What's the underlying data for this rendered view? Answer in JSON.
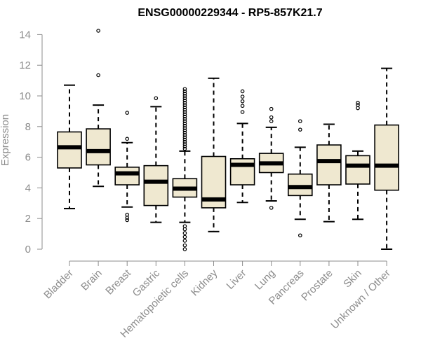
{
  "chart_data": {
    "type": "boxplot",
    "title": "ENSG00000229344 - RP5-857K21.7",
    "xlabel": "",
    "ylabel": "Expression",
    "ylim": [
      0,
      14.5
    ],
    "yticks": [
      0,
      2,
      4,
      6,
      8,
      10,
      12,
      14
    ],
    "box_color": "#efe8d0",
    "categories": [
      "Bladder",
      "Brain",
      "Breast",
      "Gastric",
      "Hematopoietic cells",
      "Kidney",
      "Liver",
      "Lung",
      "Pancreas",
      "Prostate",
      "Skin",
      "Unknown / Other"
    ],
    "boxes": [
      {
        "label": "Bladder",
        "whislo": 2.65,
        "q1": 5.3,
        "med": 6.65,
        "q3": 7.65,
        "whishi": 10.7,
        "fliers": []
      },
      {
        "label": "Brain",
        "whislo": 4.1,
        "q1": 5.5,
        "med": 6.4,
        "q3": 7.85,
        "whishi": 9.4,
        "fliers": [
          11.35,
          14.25
        ]
      },
      {
        "label": "Breast",
        "whislo": 2.75,
        "q1": 4.2,
        "med": 4.95,
        "q3": 5.35,
        "whishi": 6.95,
        "fliers": [
          1.9,
          2.05,
          2.25,
          7.2,
          8.9
        ]
      },
      {
        "label": "Gastric",
        "whislo": 1.75,
        "q1": 2.85,
        "med": 4.4,
        "q3": 5.45,
        "whishi": 9.3,
        "fliers": [
          9.85
        ]
      },
      {
        "label": "Hematopoietic cells",
        "whislo": 1.75,
        "q1": 3.4,
        "med": 3.95,
        "q3": 4.6,
        "whishi": 6.4,
        "fliers": [
          0.0,
          0.25,
          0.55,
          0.8,
          1.05,
          1.3,
          1.5,
          6.55,
          6.7,
          6.85,
          7.0,
          7.15,
          7.3,
          7.45,
          7.6,
          7.75,
          7.9,
          8.05,
          8.2,
          8.35,
          8.5,
          8.65,
          8.8,
          8.95,
          9.1,
          9.25,
          9.4,
          9.55,
          9.7,
          9.85,
          10.0,
          10.15,
          10.3,
          10.45
        ]
      },
      {
        "label": "Kidney",
        "whislo": 1.15,
        "q1": 2.7,
        "med": 3.25,
        "q3": 6.05,
        "whishi": 11.15,
        "fliers": []
      },
      {
        "label": "Liver",
        "whislo": 3.05,
        "q1": 4.2,
        "med": 5.5,
        "q3": 5.9,
        "whishi": 8.2,
        "fliers": [
          8.95,
          9.35,
          9.65,
          9.95,
          10.3
        ]
      },
      {
        "label": "Lung",
        "whislo": 3.15,
        "q1": 5.0,
        "med": 5.6,
        "q3": 6.25,
        "whishi": 7.95,
        "fliers": [
          2.7,
          8.35,
          8.6,
          9.15
        ]
      },
      {
        "label": "Pancreas",
        "whislo": 1.95,
        "q1": 3.5,
        "med": 4.05,
        "q3": 4.9,
        "whishi": 6.65,
        "fliers": [
          0.9,
          7.8,
          8.35
        ]
      },
      {
        "label": "Prostate",
        "whislo": 1.8,
        "q1": 4.2,
        "med": 5.75,
        "q3": 6.8,
        "whishi": 8.15,
        "fliers": []
      },
      {
        "label": "Skin",
        "whislo": 1.95,
        "q1": 4.25,
        "med": 5.45,
        "q3": 6.1,
        "whishi": 6.4,
        "fliers": [
          9.2,
          9.4,
          9.55
        ]
      },
      {
        "label": "Unknown / Other",
        "whislo": 0.0,
        "q1": 3.85,
        "med": 5.45,
        "q3": 8.1,
        "whishi": 11.8,
        "fliers": []
      }
    ]
  }
}
